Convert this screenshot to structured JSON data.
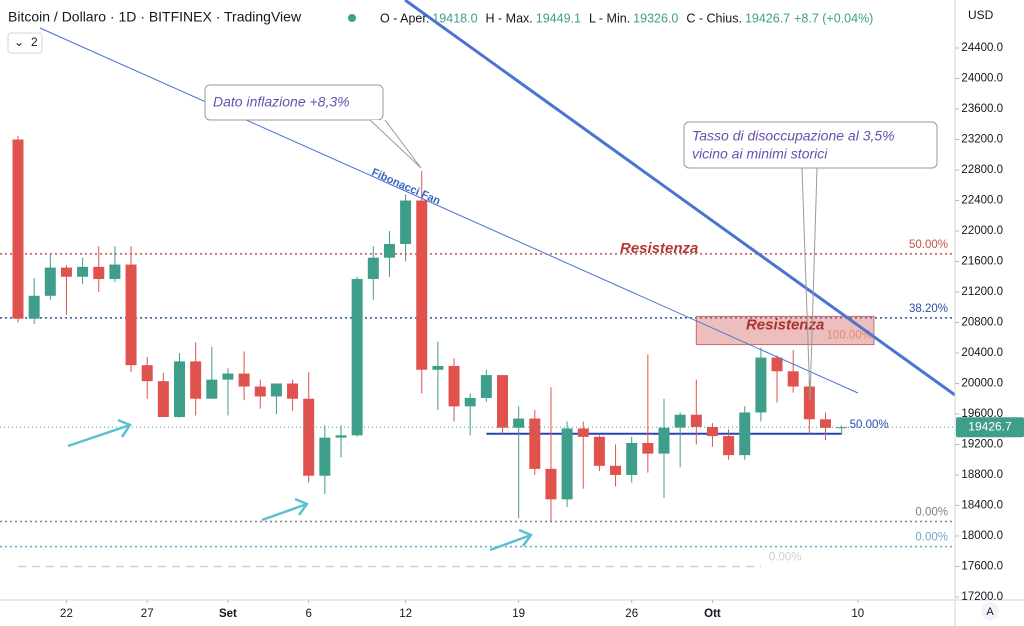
{
  "chart_data": {
    "type": "candlestick",
    "title": "Bitcoin / Dollaro · 1D · BITFINEX · TradingView",
    "legend_fields": [
      "O - Aper.",
      "H - Max.",
      "L - Min.",
      "C - Chius."
    ],
    "legend_values": [
      "19418.0",
      "19449.1",
      "19326.0",
      "19426.7"
    ],
    "change": "+8.7 (+0.04%)",
    "indicator_count": "2",
    "currency": "USD",
    "last_price_label": "19426.7",
    "x": [
      "08-19",
      "08-20",
      "08-21",
      "08-22",
      "08-23",
      "08-24",
      "08-25",
      "08-26",
      "08-27",
      "08-28",
      "08-29",
      "08-30",
      "08-31",
      "09-01",
      "09-02",
      "09-03",
      "09-04",
      "09-05",
      "09-06",
      "09-07",
      "09-08",
      "09-09",
      "09-10",
      "09-11",
      "09-12",
      "09-13",
      "09-14",
      "09-15",
      "09-16",
      "09-17",
      "09-18",
      "09-19",
      "09-20",
      "09-21",
      "09-22",
      "09-23",
      "09-24",
      "09-25",
      "09-26",
      "09-27",
      "09-28",
      "09-29",
      "09-30",
      "10-01",
      "10-02",
      "10-03",
      "10-04",
      "10-05",
      "10-06",
      "10-07",
      "10-08",
      "10-09"
    ],
    "open": [
      23200,
      20850,
      21150,
      21520,
      21400,
      21530,
      21370,
      21560,
      20240,
      20030,
      19560,
      20290,
      19800,
      20050,
      20130,
      19960,
      19830,
      20000,
      19800,
      18790,
      19290,
      19320,
      21370,
      21650,
      21830,
      22400,
      20180,
      20230,
      19700,
      19810,
      20110,
      19420,
      19540,
      18880,
      18480,
      19410,
      19300,
      18920,
      18800,
      19220,
      19080,
      19420,
      19590,
      19430,
      19310,
      19060,
      19620,
      20340,
      20160,
      19960,
      19530,
      19418
    ],
    "high": [
      23250,
      21380,
      21700,
      21550,
      21650,
      21800,
      21800,
      21800,
      20350,
      20140,
      20400,
      20540,
      20480,
      20200,
      20420,
      20050,
      20000,
      20050,
      20150,
      19450,
      19450,
      21400,
      21800,
      22000,
      22480,
      22790,
      20550,
      20330,
      19870,
      20180,
      20110,
      19700,
      19650,
      19950,
      19500,
      19500,
      19320,
      19200,
      19300,
      20380,
      19800,
      19620,
      20050,
      19480,
      19400,
      19700,
      20470,
      20370,
      20440,
      20050,
      19620,
      19449.1
    ],
    "low": [
      20800,
      20780,
      21100,
      20900,
      21300,
      21200,
      21330,
      20150,
      19800,
      19560,
      19550,
      19580,
      19800,
      19580,
      19780,
      19670,
      19600,
      19640,
      18700,
      18550,
      19030,
      19300,
      21100,
      21400,
      21600,
      19870,
      19650,
      19500,
      19320,
      19760,
      19340,
      18230,
      18800,
      18180,
      18380,
      18620,
      18850,
      18650,
      18700,
      18830,
      18500,
      18900,
      19200,
      19170,
      19000,
      19000,
      19500,
      19750,
      19880,
      19340,
      19260,
      19326
    ],
    "close": [
      20850,
      21150,
      21520,
      21400,
      21530,
      21370,
      21560,
      20240,
      20030,
      19560,
      20290,
      19800,
      20050,
      20130,
      19960,
      19830,
      20000,
      19800,
      18790,
      19290,
      19320,
      21370,
      21650,
      21830,
      22400,
      20180,
      20230,
      19700,
      19810,
      20110,
      19420,
      19540,
      18880,
      18480,
      19410,
      19300,
      18920,
      18800,
      19220,
      19080,
      19420,
      19590,
      19430,
      19310,
      19060,
      19620,
      20340,
      20160,
      19960,
      19530,
      19418,
      19426.7
    ],
    "up_color": "#3f9e8a",
    "down_color": "#e0524e",
    "ylim": [
      17160,
      25030
    ],
    "yticks": [
      {
        "value": 17200,
        "label": "17200.0"
      },
      {
        "value": 17600,
        "label": "17600.0"
      },
      {
        "value": 18000,
        "label": "18000.0"
      },
      {
        "value": 18400,
        "label": "18400.0"
      },
      {
        "value": 18800,
        "label": "18800.0"
      },
      {
        "value": 19200,
        "label": "19200.0"
      },
      {
        "value": 19600,
        "label": "19600.0"
      },
      {
        "value": 20000,
        "label": "20000.0"
      },
      {
        "value": 20400,
        "label": "20400.0"
      },
      {
        "value": 20800,
        "label": "20800.0"
      },
      {
        "value": 21200,
        "label": "21200.0"
      },
      {
        "value": 21600,
        "label": "21600.0"
      },
      {
        "value": 22000,
        "label": "22000.0"
      },
      {
        "value": 22400,
        "label": "22400.0"
      },
      {
        "value": 22800,
        "label": "22800.0"
      },
      {
        "value": 23200,
        "label": "23200.0"
      },
      {
        "value": 23600,
        "label": "23600.0"
      },
      {
        "value": 24000,
        "label": "24000.0"
      },
      {
        "value": 24400,
        "label": "24400.0"
      }
    ],
    "xticks": [
      {
        "value": "08-22",
        "label": "22"
      },
      {
        "value": "08-27",
        "label": "27"
      },
      {
        "value": "09-01",
        "label": "Set"
      },
      {
        "value": "09-06",
        "label": "6"
      },
      {
        "value": "09-12",
        "label": "12"
      },
      {
        "value": "09-19",
        "label": "19"
      },
      {
        "value": "09-26",
        "label": "26"
      },
      {
        "value": "10-01",
        "label": "Ott"
      },
      {
        "value": "10-10",
        "label": "10"
      }
    ],
    "grid": false,
    "levels": [
      {
        "label": "50.00%",
        "value": 21700,
        "color": "#c0504d",
        "dash": "2,3"
      },
      {
        "label": "38.20%",
        "value": 20860,
        "color": "#2a4f9c",
        "dash": "2,3"
      },
      {
        "label": "50.00%",
        "value": 19340,
        "color": "#2846b8",
        "from": "09-17",
        "to": "10-09"
      },
      {
        "label": "0.00%",
        "value": 18190,
        "color": "#808080",
        "dash": "2,3"
      },
      {
        "label": "0.00%",
        "value": 17860,
        "color": "#6aa8c8",
        "dash": "2,3"
      },
      {
        "label": "0.00%",
        "value": 17600,
        "color": "#cfcfcf",
        "dash": "8,6",
        "from": "08-19",
        "to": "10-04"
      }
    ],
    "zone": {
      "label": "Resistenza",
      "level_label": "100.00%",
      "low": 20510,
      "high": 20880,
      "from": "09-30",
      "to": "10-11"
    },
    "annotations": [
      "Dato inflazione +8,3%",
      "Tasso di disoccupazione al 3,5%",
      "vicino ai minimi storici",
      "Fibonacci Fan",
      "Resistenza"
    ],
    "scale_mode": "A"
  }
}
